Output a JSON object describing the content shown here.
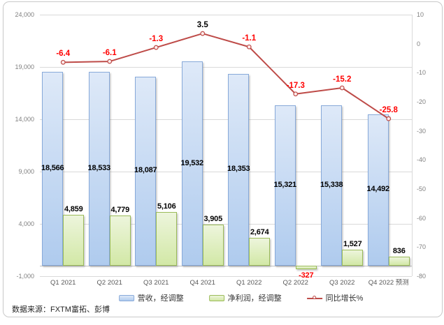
{
  "source_note": "数据来源：FXTM富拓、彭博",
  "colors": {
    "revenue_fill_top": "#DEE9F8",
    "revenue_fill_bottom": "#AFCBEE",
    "revenue_border": "#87A9D9",
    "profit_fill_top": "#EDF5DC",
    "profit_fill_bottom": "#D2E8A6",
    "profit_border": "#9BBB59",
    "growth_line": "#BE4B48",
    "growth_marker_fill": "#FCEBEA",
    "positive_label": "#000000",
    "negative_label": "#FF0000",
    "gridline": "#D9D9D9",
    "zero_line": "#BFBFBF",
    "axis_text": "#808080",
    "x_text": "#595959"
  },
  "chart_data": {
    "type": "bar",
    "subtype": "clustered-bar-with-line-combo",
    "categories": [
      "Q1 2021",
      "Q2 2021",
      "Q3 2021",
      "Q4 2021",
      "Q1 2022",
      "Q2 2022",
      "Q3 2022",
      "Q4 2022 预测"
    ],
    "series": [
      {
        "name": "营收，经调整",
        "type": "bar",
        "axis": "left",
        "values": [
          18566,
          18533,
          18087,
          19532,
          18353,
          15321,
          15338,
          14492
        ]
      },
      {
        "name": "净利润，经调整",
        "type": "bar",
        "axis": "left",
        "values": [
          4859,
          4779,
          5106,
          3905,
          2674,
          -327,
          1527,
          836
        ]
      },
      {
        "name": "同比增长%",
        "type": "line",
        "axis": "right",
        "values": [
          -6.4,
          -6.1,
          -1.3,
          3.5,
          -1.1,
          -17.3,
          -15.2,
          -25.8
        ]
      }
    ],
    "left_axis": {
      "min": -1000,
      "max": 24000,
      "tick_values": [
        24000,
        19000,
        14000,
        9000,
        4000,
        -1000
      ]
    },
    "right_axis": {
      "min": -80,
      "max": 10,
      "tick_values": [
        10,
        0,
        -10,
        -20,
        -30,
        -40,
        -50,
        -60,
        -70,
        -80
      ]
    },
    "grid": true,
    "legend_position": "bottom"
  }
}
